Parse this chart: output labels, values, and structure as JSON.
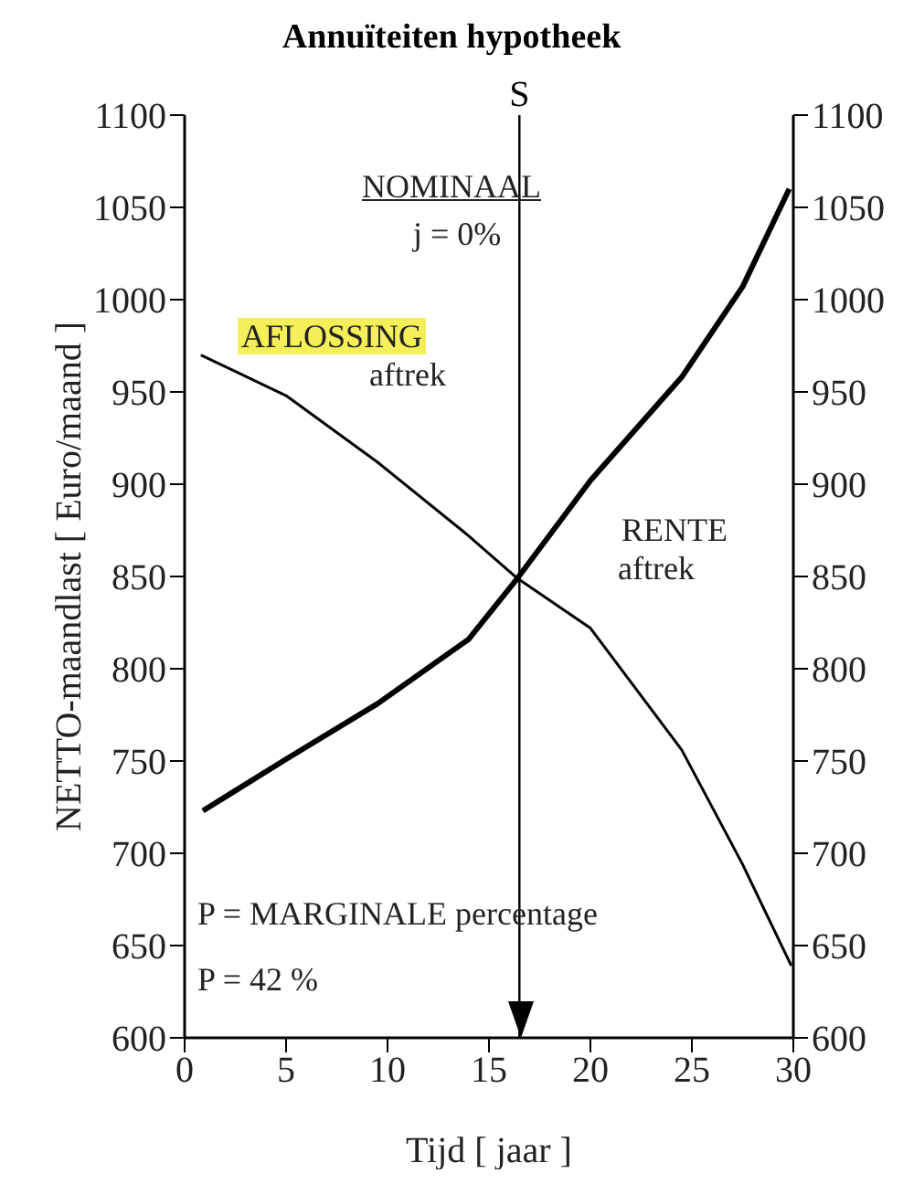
{
  "chart_data": {
    "type": "line",
    "title": "Annuïteiten hypotheek",
    "xlabel": "Tijd [ jaar ]",
    "ylabel": "NETTO-maandlast [ Euro/maand ]",
    "series": [
      {
        "name": "AFLOSSING aftrek",
        "color": "#000000",
        "x": [
          0.8,
          5,
          9.5,
          14,
          16.4,
          20,
          24.5,
          27.5,
          29.9
        ],
        "values": [
          970,
          948,
          912,
          872,
          849,
          822,
          756,
          694,
          639
        ]
      },
      {
        "name": "RENTE aftrek",
        "color": "#000000",
        "x": [
          0.9,
          5,
          9.5,
          14,
          16.4,
          20,
          24.5,
          27.5,
          29.8
        ],
        "values": [
          723,
          751,
          781,
          816,
          849,
          902,
          958,
          1007,
          1060
        ]
      }
    ],
    "xlim": [
      0,
      30
    ],
    "xticks": [
      0,
      5,
      10,
      15,
      20,
      25,
      30
    ],
    "ylim": [
      600,
      1100
    ],
    "yticks": [
      600,
      650,
      700,
      750,
      800,
      850,
      900,
      950,
      1000,
      1050,
      1100
    ],
    "y2lim": [
      600,
      1100
    ],
    "y2ticks": [
      600,
      650,
      700,
      750,
      800,
      850,
      900,
      950,
      1000,
      1050,
      1100
    ],
    "ref_lines": [
      {
        "axis": "x",
        "value": 16.5,
        "label": "S"
      }
    ],
    "annotations": [
      "NOMINAAL",
      "j = 0%",
      "P = MARGINALE percentage",
      "P = 42 %"
    ],
    "marker": "none"
  }
}
